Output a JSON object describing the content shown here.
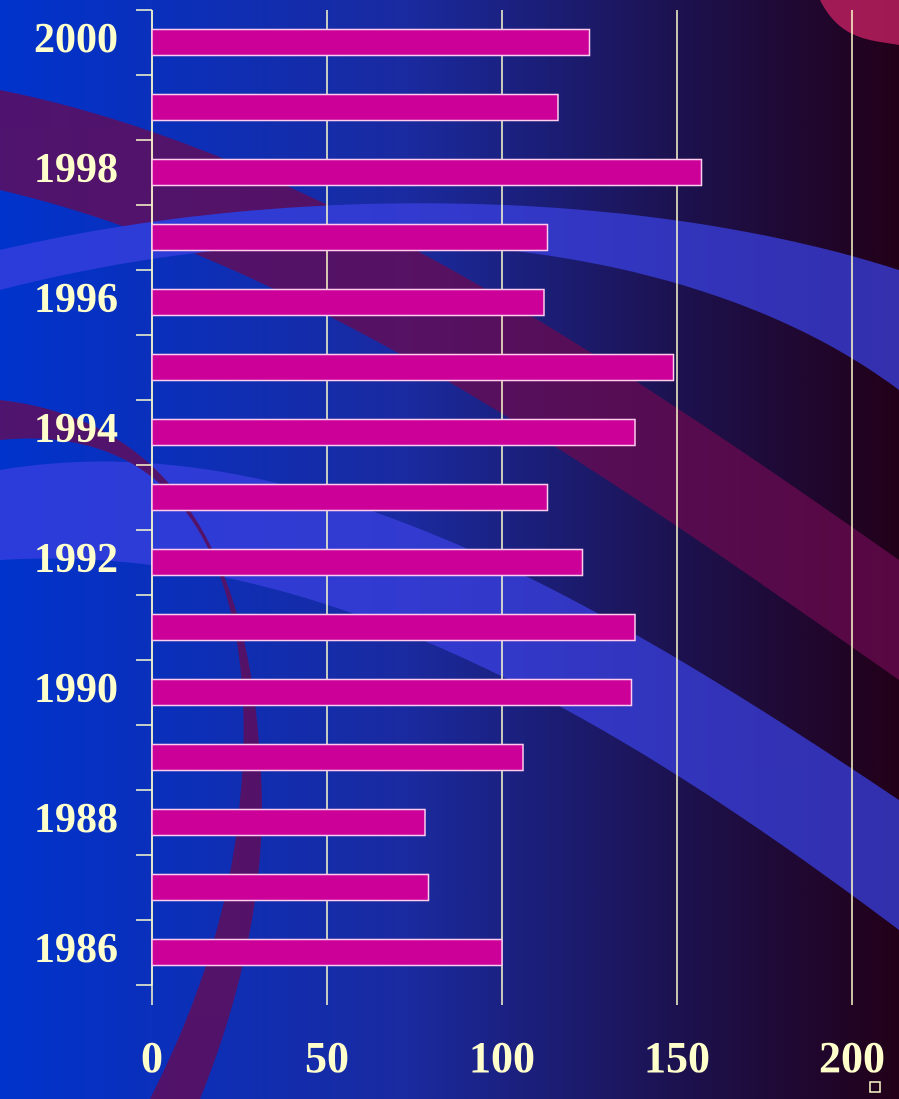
{
  "chart_data": {
    "type": "bar",
    "orientation": "horizontal",
    "categories": [
      "2000",
      null,
      "1998",
      null,
      "1996",
      null,
      "1994",
      null,
      "1992",
      null,
      "1990",
      null,
      "1988",
      null,
      "1986"
    ],
    "values": [
      125,
      116,
      157,
      113,
      112,
      149,
      138,
      113,
      123,
      138,
      137,
      106,
      78,
      79,
      100
    ],
    "color": "#cc0099",
    "xlim": [
      0,
      200
    ],
    "xticks": [
      0,
      50,
      100,
      150,
      200
    ],
    "grid": true
  }
}
